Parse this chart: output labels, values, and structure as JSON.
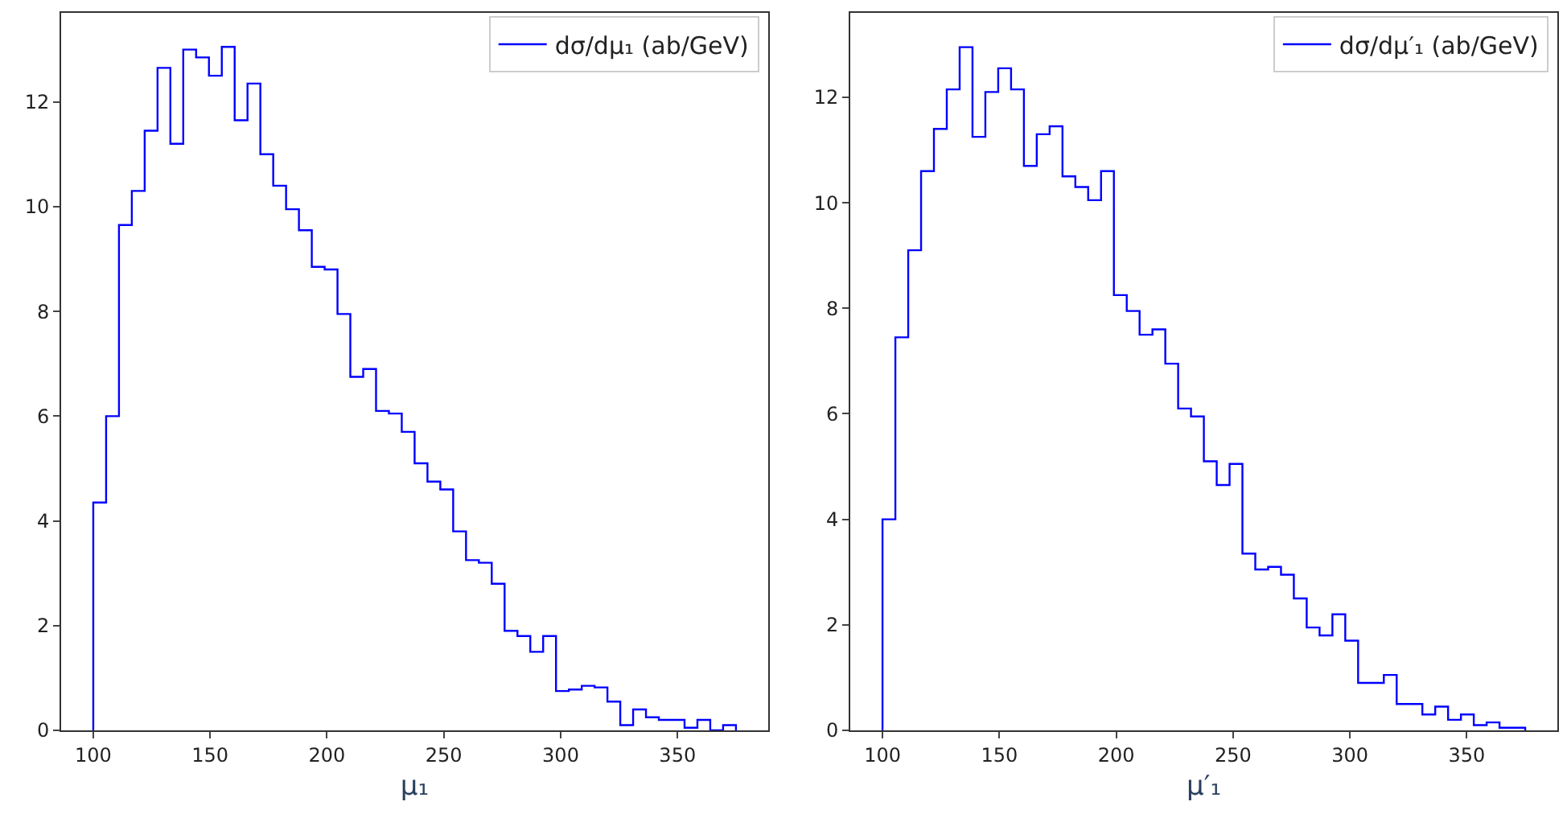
{
  "chart_data": [
    {
      "type": "histogram",
      "xlabel": "μ₁",
      "bins": [
        100,
        105.5,
        111,
        116.5,
        122,
        127.5,
        133,
        138.5,
        144,
        149.5,
        155,
        160.5,
        166,
        171.5,
        177,
        182.5,
        188,
        193.5,
        199,
        204.5,
        210,
        215.5,
        221,
        226.5,
        232,
        237.5,
        243,
        248.5,
        254,
        259.5,
        265,
        270.5,
        276,
        281.5,
        287,
        292.5,
        298,
        303.5,
        309,
        314.5,
        320,
        325.5,
        331,
        336.5,
        342,
        347.5,
        353,
        358.5,
        364,
        369.5,
        375
      ],
      "series": [
        {
          "name": "dσ/dμ₁ (ab/GeV)",
          "color": "#0000ff",
          "values": [
            4.35,
            6.0,
            9.65,
            10.3,
            11.45,
            12.65,
            11.2,
            13.0,
            12.85,
            12.5,
            13.05,
            11.65,
            12.35,
            11.0,
            10.4,
            9.95,
            9.55,
            8.85,
            8.8,
            7.95,
            6.75,
            6.9,
            6.1,
            6.05,
            5.7,
            5.1,
            4.75,
            4.6,
            3.8,
            3.25,
            3.2,
            2.8,
            1.9,
            1.8,
            1.5,
            1.8,
            0.75,
            0.78,
            0.85,
            0.82,
            0.55,
            0.1,
            0.4,
            0.25,
            0.2,
            0.2,
            0.05,
            0.2,
            0,
            0.1
          ]
        }
      ],
      "xlim": [
        86.25,
        388.75
      ],
      "ylim": [
        0,
        13.7
      ],
      "xticks": [
        100,
        150,
        200,
        250,
        300,
        350
      ],
      "yticks": [
        0,
        2,
        4,
        6,
        8,
        10,
        12
      ],
      "grid": false,
      "legend": "top right"
    },
    {
      "type": "histogram",
      "xlabel": "μ′₁",
      "bins": [
        100,
        105.5,
        111,
        116.5,
        122,
        127.5,
        133,
        138.5,
        144,
        149.5,
        155,
        160.5,
        166,
        171.5,
        177,
        182.5,
        188,
        193.5,
        199,
        204.5,
        210,
        215.5,
        221,
        226.5,
        232,
        237.5,
        243,
        248.5,
        254,
        259.5,
        265,
        270.5,
        276,
        281.5,
        287,
        292.5,
        298,
        303.5,
        309,
        314.5,
        320,
        325.5,
        331,
        336.5,
        342,
        347.5,
        353,
        358.5,
        364,
        369.5,
        375
      ],
      "series": [
        {
          "name": "dσ/dμ′₁ (ab/GeV)",
          "color": "#0000ff",
          "values": [
            4.0,
            7.45,
            9.1,
            10.6,
            11.4,
            12.15,
            12.95,
            11.25,
            12.1,
            12.55,
            12.15,
            10.7,
            11.3,
            11.45,
            10.5,
            10.3,
            10.05,
            10.6,
            8.25,
            7.95,
            7.5,
            7.6,
            6.95,
            6.1,
            5.95,
            5.1,
            4.65,
            5.05,
            3.35,
            3.05,
            3.1,
            2.95,
            2.5,
            1.95,
            1.8,
            2.2,
            1.7,
            0.9,
            0.9,
            1.05,
            0.5,
            0.5,
            0.3,
            0.45,
            0.2,
            0.3,
            0.1,
            0.15,
            0.05,
            0.05
          ]
        }
      ],
      "xlim": [
        86.25,
        388.75
      ],
      "ylim": [
        0,
        13.6
      ],
      "xticks": [
        100,
        150,
        200,
        250,
        300,
        350
      ],
      "yticks": [
        0,
        2,
        4,
        6,
        8,
        10,
        12
      ],
      "grid": false,
      "legend": "top right"
    }
  ]
}
